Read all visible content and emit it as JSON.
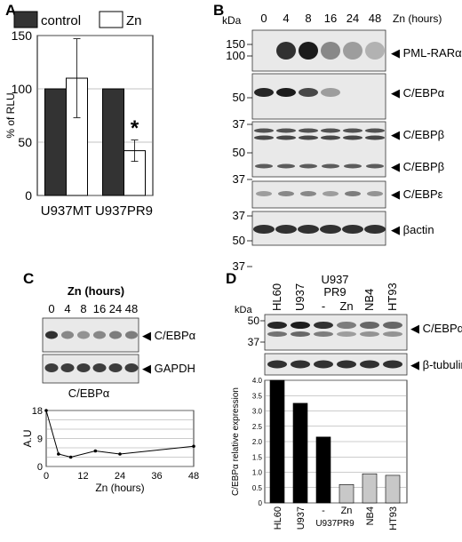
{
  "panels": {
    "A": {
      "letter": "A"
    },
    "B": {
      "letter": "B"
    },
    "C": {
      "letter": "C"
    },
    "D": {
      "letter": "D"
    }
  },
  "chart_data": [
    {
      "panel": "A",
      "type": "bar",
      "categories": [
        "U937MT",
        "U937PR9"
      ],
      "series": [
        {
          "name": "control",
          "values": [
            100,
            100
          ],
          "color": "#333333"
        },
        {
          "name": "Zn",
          "values": [
            110,
            42
          ],
          "errors": [
            37,
            10
          ],
          "color": "#ffffff"
        }
      ],
      "ylabel": "% of RLU",
      "ylim": [
        0,
        150
      ],
      "yticks": [
        "0",
        "50",
        "100",
        "150"
      ],
      "grid": true,
      "legend": "top",
      "annotation": "*"
    },
    {
      "panel": "C",
      "type": "line",
      "title": "C/EBPα",
      "xlabel": "Zn (hours)",
      "ylabel": "A.U",
      "x": [
        0,
        4,
        8,
        16,
        24,
        48
      ],
      "series": [
        {
          "values": [
            18,
            4,
            3,
            5,
            4,
            6.5
          ]
        }
      ],
      "xlim": [
        0,
        48
      ],
      "ylim": [
        0,
        18
      ],
      "xticks": [
        "0",
        "12",
        "24",
        "36",
        "48"
      ],
      "yticks": [
        "0",
        "3",
        "6",
        "9",
        "12",
        "15",
        "18"
      ],
      "grid": true
    },
    {
      "panel": "D",
      "type": "bar",
      "categories": [
        "HL60",
        "U937",
        "-",
        "Zn",
        "NB4",
        "HT93"
      ],
      "group_label": "U937PR9",
      "values": [
        4.0,
        3.25,
        2.15,
        0.6,
        0.95,
        0.9
      ],
      "colors": [
        "#000000",
        "#000000",
        "#000000",
        "#c8c8c8",
        "#c8c8c8",
        "#c8c8c8"
      ],
      "ylabel": "C/EBPα relative expression",
      "ylim": [
        0,
        4.0
      ],
      "yticks": [
        "0",
        "0.5",
        "1.0",
        "1.5",
        "2.0",
        "2.5",
        "3.0",
        "3.5",
        "4.0"
      ],
      "grid": true
    }
  ],
  "blots": {
    "B": {
      "kda": "kDa",
      "xlabel": "Zn (hours)",
      "lanes": [
        "0",
        "4",
        "8",
        "16",
        "24",
        "48"
      ],
      "bands": [
        "PML-RARα",
        "C/EBPα",
        "C/EBPβ",
        "C/EBPβ",
        "C/EBPε",
        "βactin"
      ],
      "markers": [
        "150",
        "100",
        "50",
        "37",
        "50",
        "37",
        "37",
        "50",
        "37"
      ]
    },
    "C": {
      "heading": "Zn (hours)",
      "lanes": [
        "0",
        "4",
        "8",
        "16",
        "24",
        "48"
      ],
      "bands": [
        "C/EBPα",
        "GAPDH"
      ]
    },
    "D": {
      "kda": "kDa",
      "lanes": [
        "HL60",
        "U937",
        "-",
        "Zn",
        "NB4",
        "HT93"
      ],
      "group_top": "U937",
      "group_bottom": "PR9",
      "bands": [
        "C/EBPα",
        "β-tubulin"
      ],
      "markers": [
        "50",
        "37"
      ]
    }
  }
}
